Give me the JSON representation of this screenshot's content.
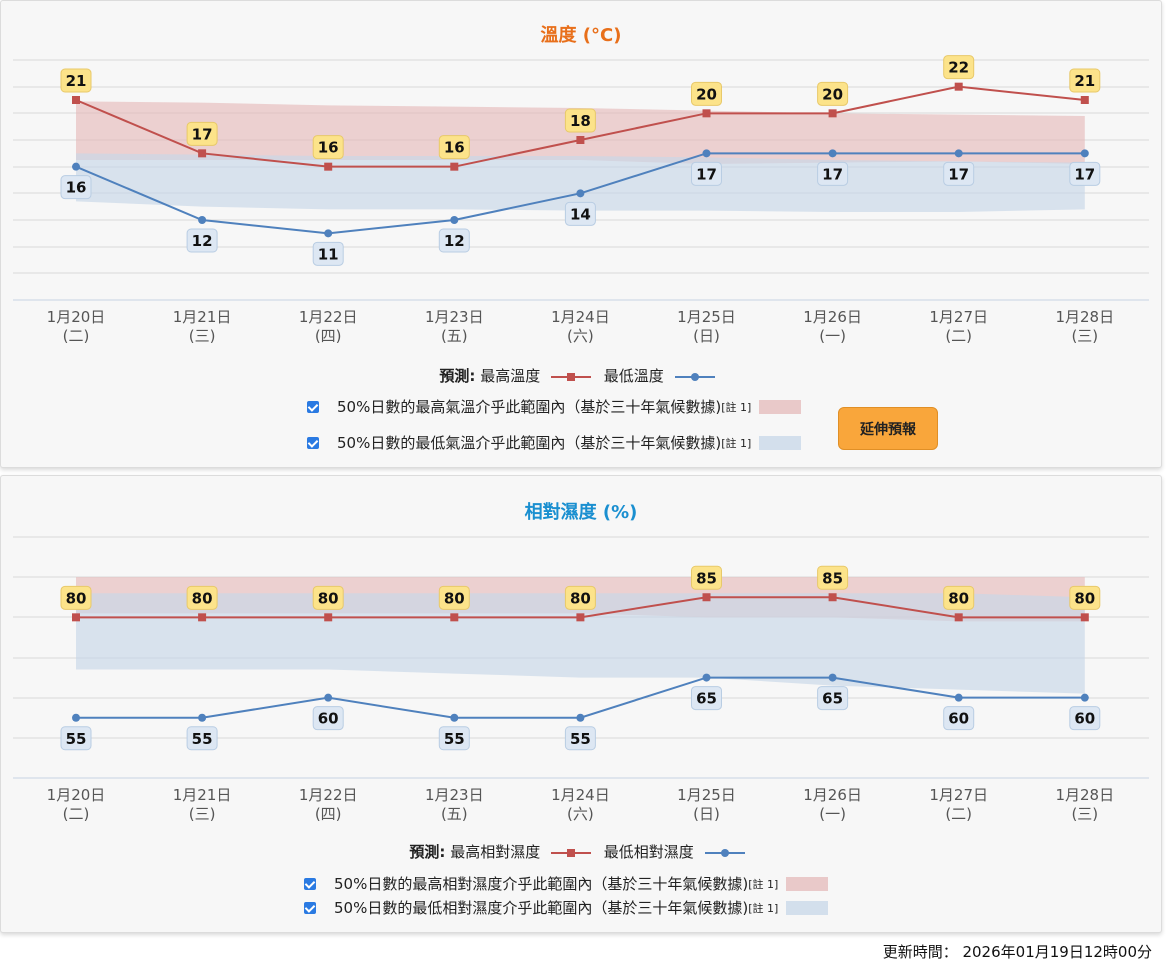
{
  "chart_data": [
    {
      "type": "line",
      "title": "溫度 (°C)",
      "categories": [
        [
          "1月20日",
          "(二)"
        ],
        [
          "1月21日",
          "(三)"
        ],
        [
          "1月22日",
          "(四)"
        ],
        [
          "1月23日",
          "(五)"
        ],
        [
          "1月24日",
          "(六)"
        ],
        [
          "1月25日",
          "(日)"
        ],
        [
          "1月26日",
          "(一)"
        ],
        [
          "1月27日",
          "(二)"
        ],
        [
          "1月28日",
          "(三)"
        ]
      ],
      "ylim": [
        6,
        24
      ],
      "series": [
        {
          "name": "最高溫度",
          "values": [
            21,
            17,
            16,
            16,
            18,
            20,
            20,
            22,
            21
          ],
          "color": "#c0504d",
          "marker": "square"
        },
        {
          "name": "最低溫度",
          "values": [
            16,
            12,
            11,
            12,
            14,
            17,
            17,
            17,
            17
          ],
          "color": "#4f81bd",
          "marker": "circle"
        }
      ],
      "bands": [
        {
          "name": "50%日數的最高氣溫介乎此範圍內",
          "low": [
            16.5,
            16.5,
            16.5,
            16.5,
            16.5,
            16.2,
            16.3,
            16.4,
            16.2
          ],
          "high": [
            20.9,
            20.8,
            20.6,
            20.5,
            20.4,
            20.2,
            20.0,
            19.9,
            19.8
          ],
          "color": "#e6bcbc"
        },
        {
          "name": "50%日數的最低氣溫介乎此範圍內",
          "low": [
            13.4,
            13.0,
            12.8,
            12.8,
            12.7,
            12.7,
            12.6,
            12.6,
            12.8
          ],
          "high": [
            17.0,
            16.9,
            16.8,
            16.8,
            16.8,
            16.7,
            16.5,
            16.4,
            16.3
          ],
          "color": "#c8d7e8"
        }
      ],
      "label_color_high": "#fce38a",
      "label_color_low": "#dde7f3",
      "grid": true
    },
    {
      "type": "line",
      "title": "相對濕度 (%)",
      "categories": [
        [
          "1月20日",
          "(二)"
        ],
        [
          "1月21日",
          "(三)"
        ],
        [
          "1月22日",
          "(四)"
        ],
        [
          "1月23日",
          "(五)"
        ],
        [
          "1月24日",
          "(六)"
        ],
        [
          "1月25日",
          "(日)"
        ],
        [
          "1月26日",
          "(一)"
        ],
        [
          "1月27日",
          "(二)"
        ],
        [
          "1月28日",
          "(三)"
        ]
      ],
      "ylim": [
        40,
        100
      ],
      "series": [
        {
          "name": "最高相對濕度",
          "values": [
            80,
            80,
            80,
            80,
            80,
            85,
            85,
            80,
            80
          ],
          "color": "#c0504d",
          "marker": "square"
        },
        {
          "name": "最低相對濕度",
          "values": [
            55,
            55,
            60,
            55,
            55,
            65,
            65,
            60,
            60
          ],
          "color": "#4f81bd",
          "marker": "circle"
        }
      ],
      "bands": [
        {
          "name": "50%日數的最高相對濕度介乎此範圍內",
          "low": [
            81,
            81,
            81,
            81,
            81,
            80,
            80,
            79,
            79
          ],
          "high": [
            90,
            90,
            90,
            90,
            90,
            90,
            90,
            90,
            90
          ],
          "color": "#e6bcbc"
        },
        {
          "name": "50%日數的最低相對濕度介乎此範圍內",
          "low": [
            67,
            67,
            67,
            66,
            65,
            65,
            63,
            62,
            61
          ],
          "high": [
            86,
            86,
            86,
            86,
            86,
            86,
            86,
            86,
            85
          ],
          "color": "#c8d7e8"
        }
      ],
      "label_color_high": "#fce38a",
      "label_color_low": "#dde7f3",
      "grid": true
    }
  ],
  "temp": {
    "title_color": "#e86f1a",
    "legend_prefix": "預測:",
    "legend_max": "最高溫度",
    "legend_min": "最低溫度",
    "range_max_text": "50%日數的最高氣溫介乎此範圍內（基於三十年氣候數據)",
    "range_min_text": "50%日數的最低氣溫介乎此範圍內（基於三十年氣候數據)",
    "note": "[註 1]",
    "ext_button": "延伸預報"
  },
  "hum": {
    "title_color": "#1a8fd0",
    "legend_prefix": "預測:",
    "legend_max": "最高相對濕度",
    "legend_min": "最低相對濕度",
    "range_max_text": "50%日數的最高相對濕度介乎此範圍內（基於三十年氣候數據)",
    "range_min_text": "50%日數的最低相對濕度介乎此範圍內（基於三十年氣候數據)",
    "note": "[註 1]"
  },
  "update_time": "更新時間： 2026年01月19日12時00分"
}
